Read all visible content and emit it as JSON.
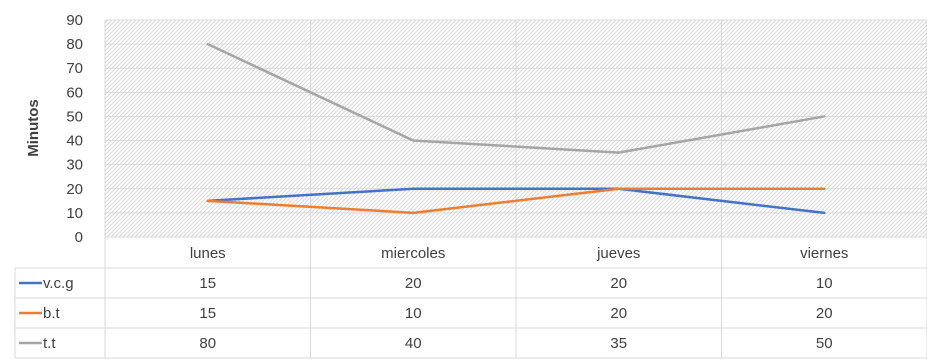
{
  "chart_data": {
    "type": "line",
    "title": "",
    "xlabel": "",
    "ylabel": "Minutos",
    "ylim": [
      0,
      90
    ],
    "y_ticks": [
      "0",
      "10",
      "20",
      "30",
      "40",
      "50",
      "60",
      "70",
      "80",
      "90"
    ],
    "categories": [
      "lunes",
      "miercoles",
      "jueves",
      "viernes"
    ],
    "grid": true,
    "legend": "data-table-below",
    "series": [
      {
        "name": "v.c.g",
        "color": "#4472C4",
        "values": [
          15,
          20,
          20,
          10
        ]
      },
      {
        "name": "b.t",
        "color": "#ED7D31",
        "values": [
          15,
          10,
          20,
          20
        ]
      },
      {
        "name": "t.t",
        "color": "#A5A5A5",
        "values": [
          80,
          40,
          35,
          50
        ]
      }
    ]
  }
}
